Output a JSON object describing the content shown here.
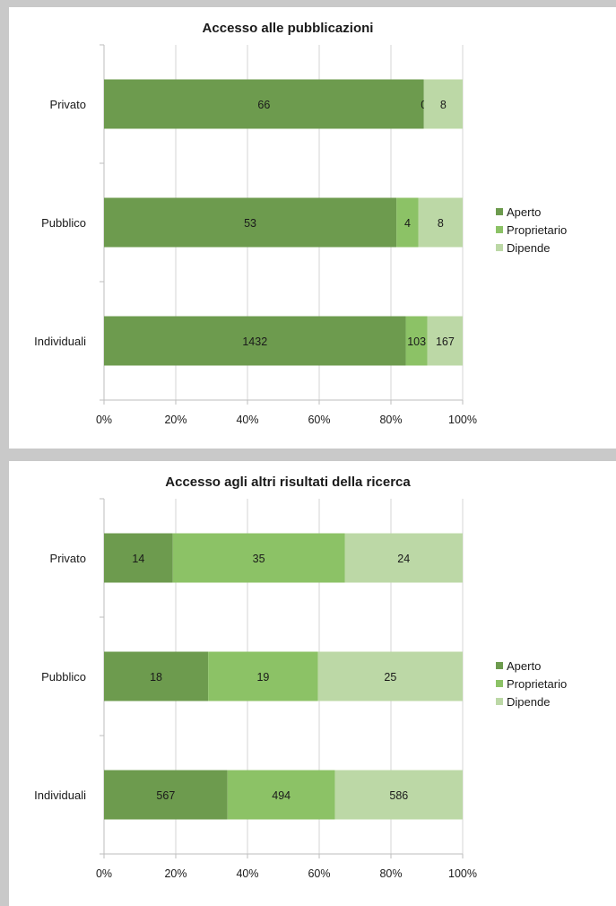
{
  "chart_data": [
    {
      "type": "bar",
      "orientation": "horizontal",
      "stacked": "percent",
      "title": "Accesso alle pubblicazioni",
      "categories": [
        "Privato",
        "Pubblico",
        "Individuali"
      ],
      "series": [
        {
          "name": "Aperto",
          "values": [
            66,
            53,
            1432
          ],
          "color": "#6d9b4e"
        },
        {
          "name": "Proprietario",
          "values": [
            0,
            4,
            103
          ],
          "color": "#8cc266"
        },
        {
          "name": "Dipende",
          "values": [
            8,
            8,
            167
          ],
          "color": "#bcd8a6"
        }
      ],
      "xticks": [
        "0%",
        "20%",
        "40%",
        "60%",
        "80%",
        "100%"
      ],
      "xlim": [
        0,
        100
      ],
      "grid": true,
      "legend": "right"
    },
    {
      "type": "bar",
      "orientation": "horizontal",
      "stacked": "percent",
      "title": "Accesso agli altri risultati della ricerca",
      "categories": [
        "Privato",
        "Pubblico",
        "Individuali"
      ],
      "series": [
        {
          "name": "Aperto",
          "values": [
            14,
            18,
            567
          ],
          "color": "#6d9b4e"
        },
        {
          "name": "Proprietario",
          "values": [
            35,
            19,
            494
          ],
          "color": "#8cc266"
        },
        {
          "name": "Dipende",
          "values": [
            24,
            25,
            586
          ],
          "color": "#bcd8a6"
        }
      ],
      "xticks": [
        "0%",
        "20%",
        "40%",
        "60%",
        "80%",
        "100%"
      ],
      "xlim": [
        0,
        100
      ],
      "grid": true,
      "legend": "right"
    }
  ]
}
